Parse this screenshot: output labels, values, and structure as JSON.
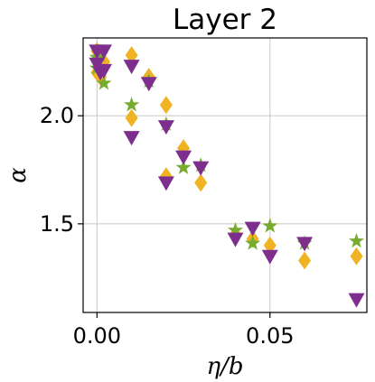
{
  "chart_data": {
    "type": "scatter",
    "title": "Layer 2",
    "xlabel": "η/b",
    "ylabel": "α",
    "xlim": [
      -0.004,
      0.078
    ],
    "ylim": [
      1.09,
      2.36
    ],
    "x_ticks": [
      0.0,
      0.05
    ],
    "x_tick_labels": [
      "0.00",
      "0.05"
    ],
    "y_ticks": [
      1.5,
      2.0
    ],
    "y_tick_labels": [
      "1.5",
      "2.0"
    ],
    "grid": true,
    "legend": "none",
    "series": [
      {
        "marker": "diamond",
        "color": "#f0b323",
        "points": [
          [
            0.0,
            2.3
          ],
          [
            0.0,
            2.2
          ],
          [
            0.001,
            2.18
          ],
          [
            0.002,
            2.25
          ],
          [
            0.01,
            2.28
          ],
          [
            0.01,
            1.99
          ],
          [
            0.015,
            2.18
          ],
          [
            0.02,
            2.05
          ],
          [
            0.02,
            1.72
          ],
          [
            0.025,
            1.85
          ],
          [
            0.03,
            1.69
          ],
          [
            0.04,
            1.45
          ],
          [
            0.045,
            1.43
          ],
          [
            0.05,
            1.4
          ],
          [
            0.06,
            1.33
          ],
          [
            0.075,
            1.35
          ]
        ]
      },
      {
        "marker": "star",
        "color": "#77ac30",
        "points": [
          [
            0.0,
            2.27
          ],
          [
            0.0,
            2.22
          ],
          [
            0.001,
            2.28
          ],
          [
            0.002,
            2.15
          ],
          [
            0.01,
            2.05
          ],
          [
            0.015,
            2.16
          ],
          [
            0.02,
            1.96
          ],
          [
            0.025,
            1.76
          ],
          [
            0.03,
            1.77
          ],
          [
            0.04,
            1.47
          ],
          [
            0.045,
            1.41
          ],
          [
            0.05,
            1.49
          ],
          [
            0.06,
            1.41
          ],
          [
            0.075,
            1.42
          ]
        ]
      },
      {
        "marker": "triangle-down",
        "color": "#7e2f8e",
        "points": [
          [
            0.0,
            2.3
          ],
          [
            0.0,
            2.24
          ],
          [
            0.001,
            2.2
          ],
          [
            0.002,
            2.3
          ],
          [
            0.002,
            2.21
          ],
          [
            0.01,
            2.23
          ],
          [
            0.01,
            1.9
          ],
          [
            0.015,
            2.15
          ],
          [
            0.02,
            1.95
          ],
          [
            0.02,
            1.69
          ],
          [
            0.025,
            1.81
          ],
          [
            0.03,
            1.76
          ],
          [
            0.04,
            1.43
          ],
          [
            0.045,
            1.48
          ],
          [
            0.05,
            1.35
          ],
          [
            0.06,
            1.41
          ],
          [
            0.075,
            1.15
          ]
        ]
      }
    ]
  }
}
